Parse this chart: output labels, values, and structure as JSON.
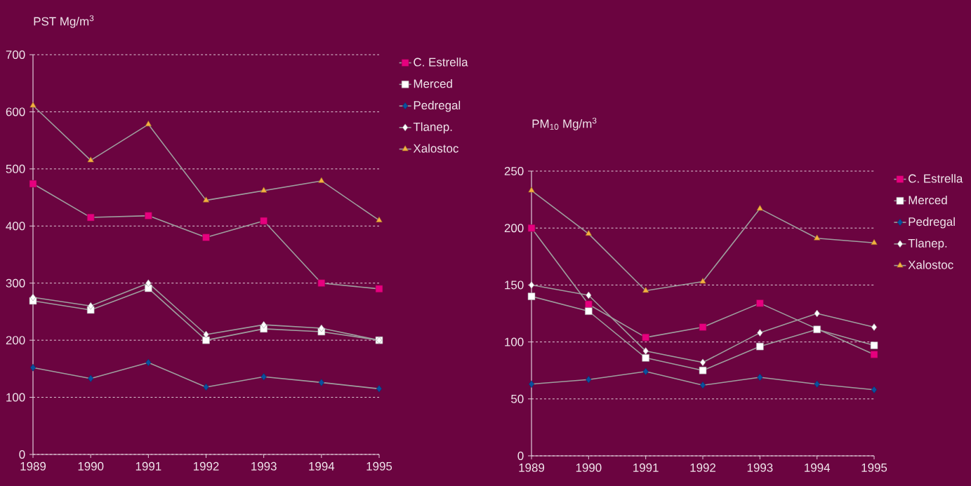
{
  "chart_data": [
    {
      "type": "line",
      "ylabel": "PST Mg/m$^{3}$",
      "x": [
        1989,
        1990,
        1991,
        1992,
        1993,
        1994,
        1995
      ],
      "xlim": [
        1989,
        1995
      ],
      "xticks": [
        1989,
        1990,
        1991,
        1992,
        1993,
        1994,
        1995
      ],
      "ylim": [
        0,
        700
      ],
      "yticks": [
        0,
        100,
        200,
        300,
        400,
        500,
        600,
        700
      ],
      "grid": "y",
      "legend": "right",
      "line_style": "solid",
      "series": [
        {
          "name": "C. Estrella",
          "color": "#e6007e",
          "marker": "square",
          "values": [
            474,
            415,
            418,
            380,
            409,
            300,
            290
          ]
        },
        {
          "name": "Merced",
          "color": "#ffffff",
          "marker": "square",
          "values": [
            269,
            253,
            291,
            200,
            220,
            215,
            200
          ]
        },
        {
          "name": "Pedregal",
          "color": "#0a4f9e",
          "marker": "diamond",
          "values": [
            152,
            133,
            161,
            118,
            136,
            126,
            115
          ]
        },
        {
          "name": "Tlanep.",
          "color": "#ffffff",
          "marker": "diamond",
          "values": [
            275,
            260,
            300,
            210,
            227,
            221,
            200
          ]
        },
        {
          "name": "Xalostoc",
          "color": "#f5b041",
          "marker": "triangle",
          "values": [
            611,
            515,
            578,
            445,
            462,
            479,
            410
          ]
        }
      ]
    },
    {
      "type": "line",
      "ylabel": "PM$_{10}$ Mg/m$^{3}$",
      "x": [
        1989,
        1990,
        1991,
        1992,
        1993,
        1994,
        1995
      ],
      "xlim": [
        1989,
        1995
      ],
      "xticks": [
        1989,
        1990,
        1991,
        1992,
        1993,
        1994,
        1995
      ],
      "ylim": [
        0,
        250
      ],
      "yticks": [
        0,
        50,
        100,
        150,
        200,
        250
      ],
      "grid": "y",
      "legend": "right",
      "line_style": "solid",
      "series": [
        {
          "name": "C. Estrella",
          "color": "#e6007e",
          "marker": "square",
          "values": [
            200,
            133,
            104,
            113,
            134,
            null,
            89
          ]
        },
        {
          "name": "Merced",
          "color": "#ffffff",
          "marker": "square",
          "values": [
            140,
            127,
            86,
            75,
            96,
            111,
            97
          ]
        },
        {
          "name": "Pedregal",
          "color": "#0a4f9e",
          "marker": "diamond",
          "values": [
            63,
            67,
            74,
            62,
            69,
            63,
            58
          ]
        },
        {
          "name": "Tlanep.",
          "color": "#ffffff",
          "marker": "diamond",
          "values": [
            150,
            141,
            92,
            82,
            108,
            125,
            113
          ]
        },
        {
          "name": "Xalostoc",
          "color": "#f5b041",
          "marker": "triangle",
          "values": [
            233,
            195,
            145,
            153,
            217,
            191,
            187
          ]
        }
      ]
    }
  ]
}
